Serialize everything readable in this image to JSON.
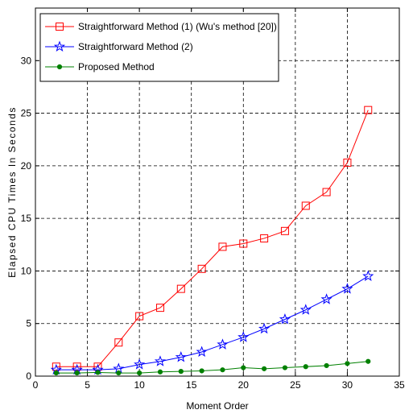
{
  "chart_data": {
    "type": "line",
    "title": "",
    "xlabel": "Moment Order",
    "ylabel": "Elapsed CPU Times In Seconds",
    "xlim": [
      0,
      35
    ],
    "ylim": [
      0,
      35
    ],
    "xticks": [
      0,
      5,
      10,
      15,
      20,
      25,
      30,
      35
    ],
    "yticks": [
      0,
      5,
      10,
      15,
      20,
      25,
      30
    ],
    "grid": true,
    "legend_position": "top-left",
    "x": [
      2,
      4,
      6,
      8,
      10,
      12,
      14,
      16,
      18,
      20,
      22,
      24,
      26,
      28,
      30,
      32
    ],
    "series": [
      {
        "name": "Straightforward Method (1)  (Wu's method [20])",
        "color": "#ff0000",
        "marker": "square",
        "values": [
          0.9,
          0.9,
          0.9,
          3.2,
          5.7,
          6.5,
          8.3,
          10.2,
          12.3,
          12.6,
          13.1,
          13.8,
          16.2,
          17.5,
          20.3,
          25.3
        ]
      },
      {
        "name": "Straightforward Method (2)",
        "color": "#0000ff",
        "marker": "star",
        "values": [
          0.6,
          0.6,
          0.6,
          0.7,
          1.1,
          1.4,
          1.8,
          2.3,
          3.0,
          3.7,
          4.5,
          5.4,
          6.3,
          7.3,
          8.3,
          9.5
        ]
      },
      {
        "name": "Proposed Method",
        "color": "#008000",
        "marker": "dot",
        "values": [
          0.3,
          0.3,
          0.35,
          0.3,
          0.3,
          0.4,
          0.45,
          0.5,
          0.6,
          0.8,
          0.7,
          0.8,
          0.9,
          1.0,
          1.2,
          1.4
        ]
      }
    ]
  }
}
